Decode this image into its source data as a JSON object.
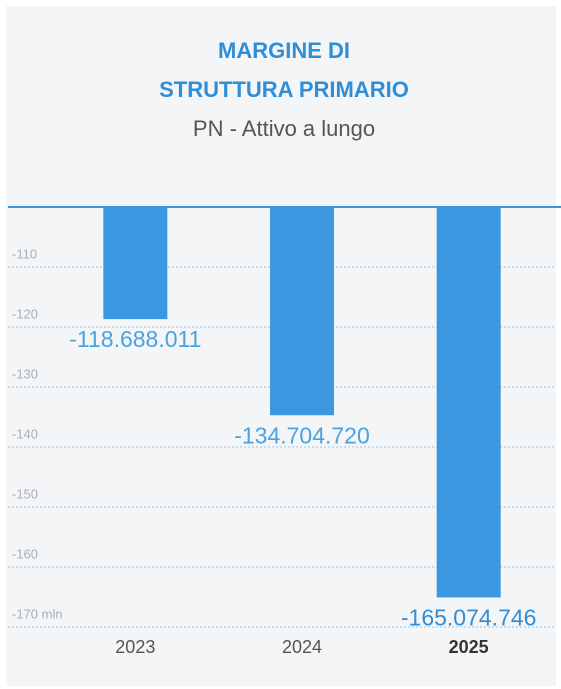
{
  "chart_data": {
    "type": "bar",
    "title": [
      "MARGINE DI",
      "STRUTTURA PRIMARIO"
    ],
    "subtitle": "PN - Attivo a lungo",
    "categories": [
      "2023",
      "2024",
      "2025"
    ],
    "values": [
      -118.688011,
      -134.70472,
      -165.074746
    ],
    "value_labels": [
      "-118.688.011",
      "-134.704.720",
      "-165.074.746"
    ],
    "color": "#3a97e0",
    "highlight_index": 2,
    "ylim": [
      -170,
      -100
    ],
    "yticks": [
      -110,
      -120,
      -130,
      -140,
      -150,
      -160,
      {
        "value": -170,
        "label": "-170 mln"
      }
    ],
    "grid": true
  }
}
